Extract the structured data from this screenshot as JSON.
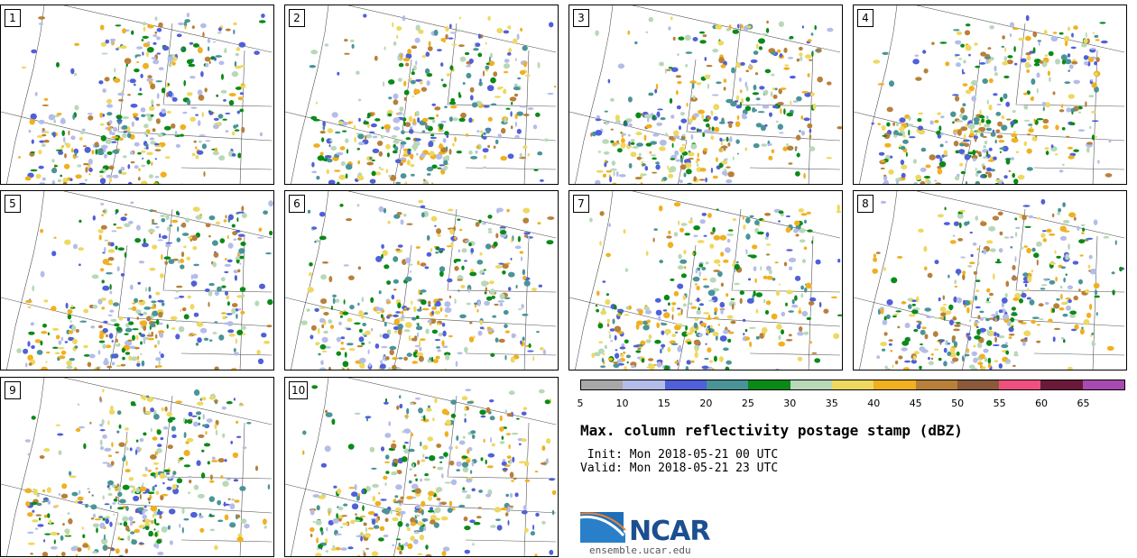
{
  "panels": [
    {
      "label": "1"
    },
    {
      "label": "2"
    },
    {
      "label": "3"
    },
    {
      "label": "4"
    },
    {
      "label": "5"
    },
    {
      "label": "6"
    },
    {
      "label": "7"
    },
    {
      "label": "8"
    },
    {
      "label": "9"
    },
    {
      "label": "10"
    }
  ],
  "colorbar": {
    "colors": [
      "#a8a8a8",
      "#b4bce8",
      "#5060d8",
      "#4a9498",
      "#0a8a18",
      "#b8d8b8",
      "#eed860",
      "#f0b020",
      "#b8803a",
      "#8a5a3a",
      "#f05080",
      "#6a1a38",
      "#a84ab0"
    ],
    "ticks": [
      "5",
      "10",
      "15",
      "20",
      "25",
      "30",
      "35",
      "40",
      "45",
      "50",
      "55",
      "60",
      "65"
    ]
  },
  "title": "Max. column reflectivity postage stamp (dBZ)",
  "init": " Init: Mon 2018-05-21 00 UTC",
  "valid": "Valid: Mon 2018-05-21 23 UTC",
  "logo": {
    "text": "NCAR",
    "url": "ensemble.ucar.edu",
    "colors": {
      "primary": "#1c4f8f",
      "accent": "#2a80c8"
    }
  }
}
